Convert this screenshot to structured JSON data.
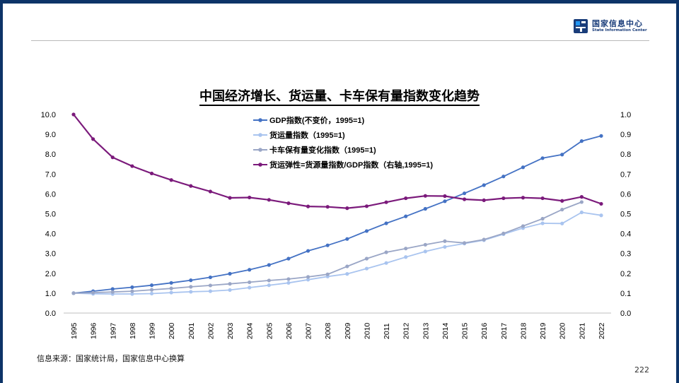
{
  "logo": {
    "name_cn": "国家信息中心",
    "name_en": "State Information Center",
    "brand_color": "#1a3d7a",
    "accent_color": "#2196f3"
  },
  "title": "中国经济增长、货运量、卡车保有量指数变化趋势",
  "source": "信息来源：国家统计局，国家信息中心换算",
  "page_number": "222",
  "chart_data": {
    "type": "line",
    "title": "中国经济增长、货运量、卡车保有量指数变化趋势",
    "categories": [
      "1995",
      "1996",
      "1997",
      "1998",
      "1999",
      "2000",
      "2001",
      "2002",
      "2003",
      "2004",
      "2005",
      "2006",
      "2007",
      "2008",
      "2009",
      "2010",
      "2011",
      "2012",
      "2013",
      "2014",
      "2015",
      "2016",
      "2017",
      "2018",
      "2019",
      "2020",
      "2021",
      "2022"
    ],
    "left_axis": {
      "min": 0,
      "max": 10,
      "ticks": [
        "0.0",
        "1.0",
        "2.0",
        "3.0",
        "4.0",
        "5.0",
        "6.0",
        "7.0",
        "8.0",
        "9.0",
        "10.0"
      ]
    },
    "right_axis": {
      "min": 0,
      "max": 1,
      "ticks": [
        "0.0",
        "0.1",
        "0.2",
        "0.3",
        "0.4",
        "0.5",
        "0.6",
        "0.7",
        "0.8",
        "0.9",
        "1.0"
      ]
    },
    "legend_position": "top-center",
    "series": [
      {
        "name": "GDP指数(不变价，1995=1)",
        "axis": "left",
        "color": "#4472c4",
        "values": [
          1.0,
          1.1,
          1.21,
          1.3,
          1.4,
          1.52,
          1.65,
          1.8,
          1.98,
          2.18,
          2.42,
          2.74,
          3.13,
          3.41,
          3.73,
          4.13,
          4.52,
          4.87,
          5.25,
          5.63,
          6.03,
          6.44,
          6.88,
          7.34,
          7.8,
          7.98,
          8.66,
          8.92
        ]
      },
      {
        "name": "货运量指数（1995=1)",
        "axis": "left",
        "color": "#a9c4ef",
        "values": [
          1.0,
          0.97,
          0.96,
          0.96,
          0.98,
          1.03,
          1.07,
          1.1,
          1.16,
          1.28,
          1.4,
          1.52,
          1.68,
          1.84,
          1.97,
          2.24,
          2.52,
          2.82,
          3.1,
          3.33,
          3.5,
          3.67,
          3.97,
          4.28,
          4.52,
          4.51,
          5.07,
          4.92
        ]
      },
      {
        "name": "卡车保有量变化指数（1995=1)",
        "axis": "left",
        "color": "#9aa6c6",
        "values": [
          1.0,
          1.03,
          1.06,
          1.1,
          1.17,
          1.24,
          1.32,
          1.39,
          1.47,
          1.55,
          1.64,
          1.71,
          1.82,
          1.95,
          2.35,
          2.74,
          3.06,
          3.25,
          3.44,
          3.62,
          3.53,
          3.7,
          4.01,
          4.38,
          4.75,
          5.21,
          5.59,
          null
        ]
      },
      {
        "name": "货运弹性=货源量指数/GDP指数（右轴,1995=1)",
        "axis": "right",
        "color": "#7b1a7b",
        "values": [
          1.0,
          0.876,
          0.784,
          0.74,
          0.703,
          0.67,
          0.64,
          0.612,
          0.58,
          0.582,
          0.57,
          0.553,
          0.537,
          0.535,
          0.528,
          0.538,
          0.558,
          0.578,
          0.59,
          0.589,
          0.573,
          0.568,
          0.578,
          0.581,
          0.578,
          0.565,
          0.585,
          0.55
        ]
      }
    ]
  }
}
